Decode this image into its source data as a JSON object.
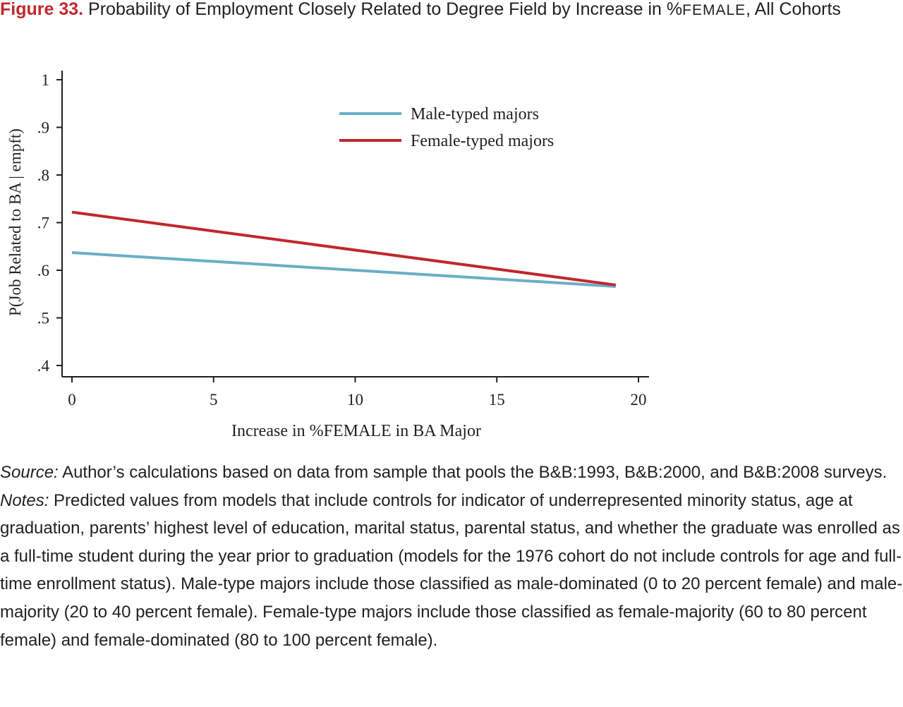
{
  "caption": {
    "figure_number": "Figure 33.",
    "title_main": "Probability of Employment Closely Related to Degree Field by Increase in %",
    "title_smallcaps": "FEMALE",
    "title_end": ", All Cohorts"
  },
  "chart_data": {
    "type": "line",
    "xlabel": "Increase in %FEMALE in BA Major",
    "ylabel": "P(Job Related to BA | empft)",
    "xlim": [
      0,
      20
    ],
    "ylim": [
      0.4,
      1
    ],
    "x_ticks": [
      "0",
      "5",
      "10",
      "15",
      "20"
    ],
    "y_ticks": [
      ".4",
      ".5",
      ".6",
      ".7",
      ".8",
      ".9",
      "1"
    ],
    "x_tick_values": [
      0,
      5,
      10,
      15,
      20
    ],
    "y_tick_values": [
      0.4,
      0.5,
      0.6,
      0.7,
      0.8,
      0.9,
      1.0
    ],
    "legend_placement": "top-center",
    "grid": false,
    "series": [
      {
        "name": "Male-typed majors",
        "color": "#6aaec5",
        "x": [
          0,
          19.2
        ],
        "y": [
          0.637,
          0.566
        ]
      },
      {
        "name": "Female-typed majors",
        "color": "#c0272d",
        "x": [
          0,
          19.2
        ],
        "y": [
          0.722,
          0.569
        ]
      }
    ]
  },
  "source_note": {
    "source_label": "Source:",
    "source_text": " Author’s calculations based on data from sample that pools the B&B:1993, B&B:2000, and B&B:2008 surveys.",
    "notes_label": "Notes:",
    "notes_text": " Predicted values from models that include controls for indicator of underrepresented minority status, age at graduation, parents’ highest level of education, marital status, parental status, and whether the graduate was enrolled as a full-time student during the year prior to graduation (models for the 1976 cohort do not include controls for age and full-time enrollment status). Male-type majors include those classified as male-dominated (0 to 20 percent female) and male-majority (20 to 40 percent female). Female-type majors include those classified as female-majority (60 to 80 percent female) and female-dominated (80 to 100 percent female)."
  }
}
